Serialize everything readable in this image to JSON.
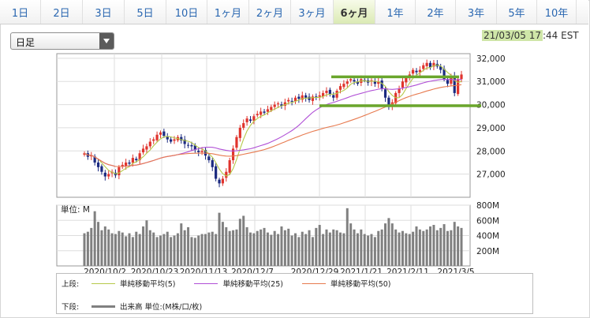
{
  "tabs": [
    {
      "label": "1日"
    },
    {
      "label": "2日"
    },
    {
      "label": "3日"
    },
    {
      "label": "5日"
    },
    {
      "label": "10日"
    },
    {
      "label": "1ヶ月"
    },
    {
      "label": "2ヶ月"
    },
    {
      "label": "3ヶ月"
    },
    {
      "label": "6ヶ月",
      "active": true
    },
    {
      "label": "1年"
    },
    {
      "label": "2年"
    },
    {
      "label": "3年"
    },
    {
      "label": "5年"
    },
    {
      "label": "10年"
    }
  ],
  "period_select": {
    "value": "日足"
  },
  "timestamp": {
    "date": "21/03/05 17",
    "time_rest": ":44 EST"
  },
  "colors": {
    "accent": "#2a67b1",
    "up": "#e0342d",
    "down": "#1b2a80",
    "ma5": "#b6c94a",
    "ma25": "#b04fd6",
    "ma50": "#e77a4f",
    "volume": "#808080",
    "highlight_line": "#6aa62c"
  },
  "chart_data": [
    {
      "type": "candlestick",
      "x_tick_labels": [
        "2020/10/2",
        "2020/10/23",
        "2020/11/13",
        "2020/12/7",
        "2020/12/29",
        "2021/1/21",
        "2021/2/11",
        "2021/3/5"
      ],
      "y_tick_labels": [
        "32,000",
        "31,000",
        "30,000",
        "29,000",
        "28,000",
        "27,000"
      ],
      "ylim": [
        26000,
        32200
      ],
      "horizontal_lines": [
        31200,
        29950
      ],
      "grid": true,
      "series": [
        {
          "name": "単純移動平均(5)"
        },
        {
          "name": "単純移動平均(25)"
        },
        {
          "name": "単純移動平均(50)"
        }
      ],
      "close": [
        27900,
        27750,
        27800,
        27500,
        27300,
        27100,
        26900,
        27000,
        27100,
        26950,
        27300,
        27400,
        27500,
        27450,
        27700,
        27600,
        27900,
        28100,
        28200,
        28400,
        28500,
        28700,
        28800,
        28650,
        28500,
        28400,
        28500,
        28600,
        28450,
        28300,
        28250,
        28200,
        28050,
        27950,
        28000,
        27800,
        27600,
        27300,
        26800,
        26600,
        26800,
        27100,
        27600,
        28100,
        28600,
        29000,
        29200,
        29400,
        29300,
        29500,
        29600,
        29700,
        29650,
        29800,
        29900,
        30000,
        30050,
        29950,
        30100,
        30200,
        30150,
        30300,
        30250,
        30400,
        30300,
        30200,
        30350,
        30300,
        30400,
        30500,
        30600,
        30450,
        30300,
        30600,
        30800,
        30900,
        31000,
        31100,
        31000,
        30900,
        31100,
        31050,
        30950,
        31050,
        30900,
        31000,
        30700,
        30300,
        29900,
        30100,
        30500,
        30700,
        31000,
        31150,
        31300,
        31500,
        31400,
        31500,
        31700,
        31800,
        31600,
        31800,
        31650,
        31500,
        31100,
        30900,
        31200,
        30500,
        31100,
        31300
      ]
    },
    {
      "type": "bar",
      "name": "出来高 単位:(M株/口/枚)",
      "unit_label": "単位: M",
      "y_tick_labels": [
        "800M",
        "600M",
        "400M",
        "200M"
      ],
      "ylim": [
        0,
        800
      ],
      "values": [
        430,
        450,
        500,
        720,
        580,
        470,
        520,
        480,
        430,
        420,
        460,
        440,
        390,
        430,
        380,
        450,
        420,
        520,
        600,
        470,
        440,
        380,
        400,
        420,
        450,
        380,
        400,
        430,
        560,
        470,
        510,
        380,
        370,
        400,
        420,
        420,
        440,
        450,
        420,
        700,
        580,
        510,
        460,
        470,
        480,
        620,
        660,
        510,
        440,
        430,
        460,
        480,
        500,
        440,
        410,
        460,
        420,
        520,
        470,
        490,
        400,
        430,
        380,
        450,
        420,
        470,
        380,
        500,
        540,
        420,
        480,
        440,
        480,
        470,
        440,
        430,
        760,
        560,
        480,
        430,
        480,
        420,
        400,
        420,
        380,
        460,
        480,
        560,
        630,
        560,
        480,
        440,
        460,
        430,
        420,
        450,
        520,
        480,
        460,
        480,
        520,
        540,
        470,
        500,
        550,
        460,
        470,
        580,
        520,
        500
      ]
    }
  ],
  "legend": {
    "upper_label": "上段:",
    "lower_label": "下段:",
    "upper_items": [
      {
        "label": "単純移動平均(5)",
        "color": "#b6c94a"
      },
      {
        "label": "単純移動平均(25)",
        "color": "#b04fd6"
      },
      {
        "label": "単純移動平均(50)",
        "color": "#e77a4f"
      }
    ],
    "lower_item": {
      "label": "出来高 単位:(M株/口/枚)",
      "color": "#808080"
    }
  }
}
